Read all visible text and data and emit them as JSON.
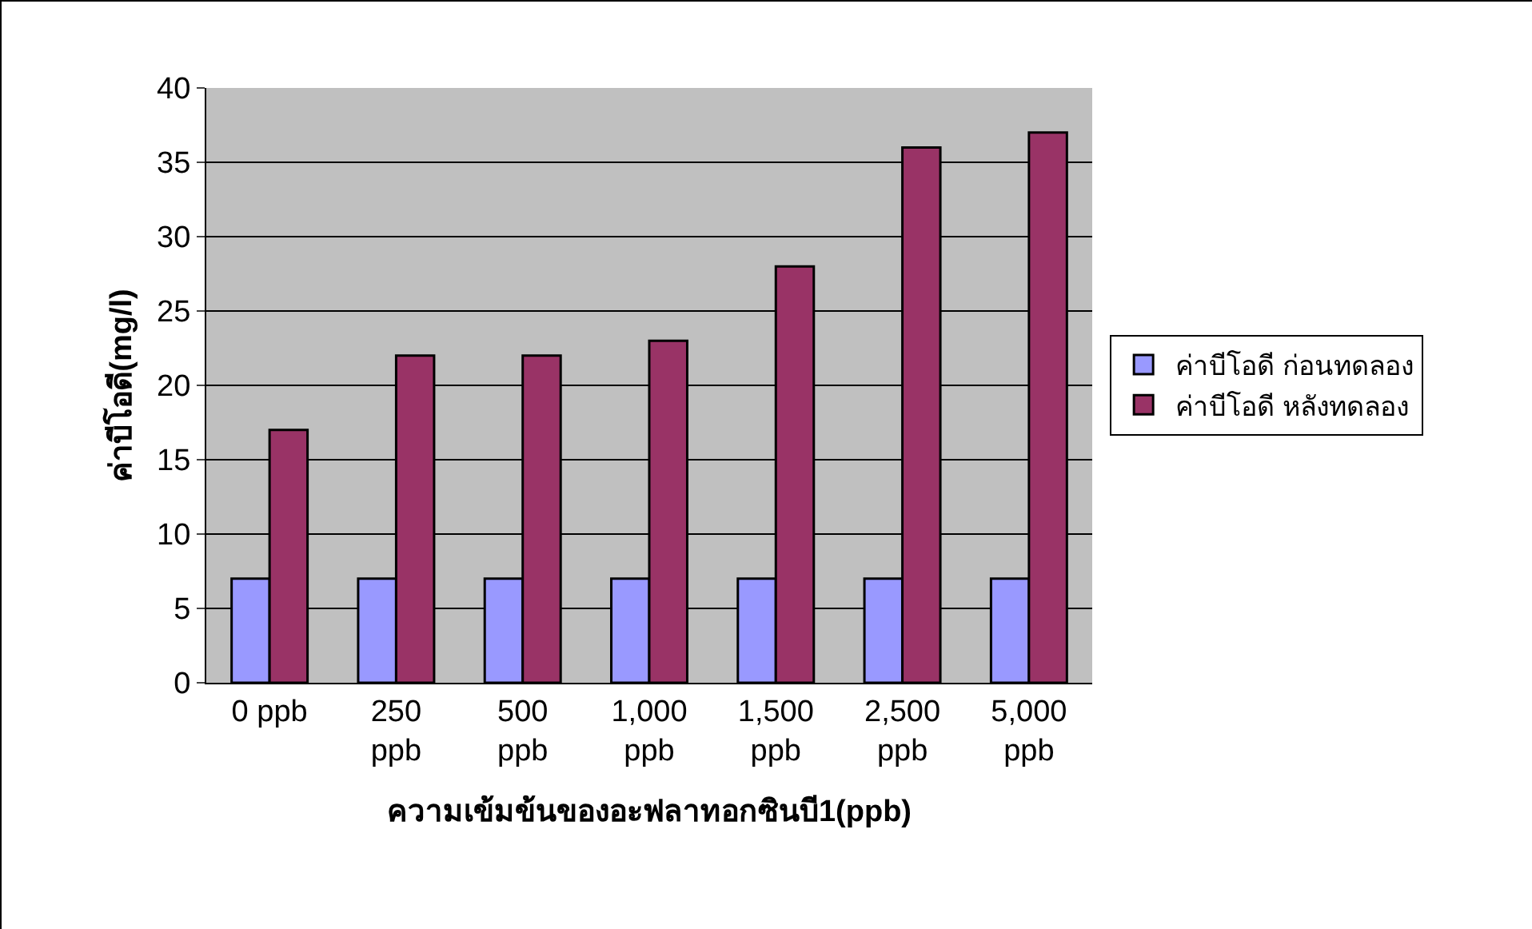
{
  "chart_data": {
    "type": "bar",
    "xlabel": "ความเข้มข้นของอะฟลาทอกซินบี1(ppb)",
    "ylabel": "ค่าบีโอดี(mg/l)",
    "categories": [
      "0 ppb",
      "250 ppb",
      "500 ppb",
      "1,000 ppb",
      "1,500 ppb",
      "2,500 ppb",
      "5,000 ppb"
    ],
    "series": [
      {
        "name": "ค่าบีโอดี ก่อนทดลอง",
        "color": "#9999ff",
        "values": [
          7,
          7,
          7,
          7,
          7,
          7,
          7
        ]
      },
      {
        "name": "ค่าบีโอดี หลังทดลอง",
        "color": "#993366",
        "values": [
          17,
          22,
          22,
          23,
          28,
          36,
          37
        ]
      }
    ],
    "ylim": [
      0,
      40
    ],
    "yticks": [
      0,
      5,
      10,
      15,
      20,
      25,
      30,
      35,
      40
    ],
    "grid": "y",
    "legend": "right"
  }
}
